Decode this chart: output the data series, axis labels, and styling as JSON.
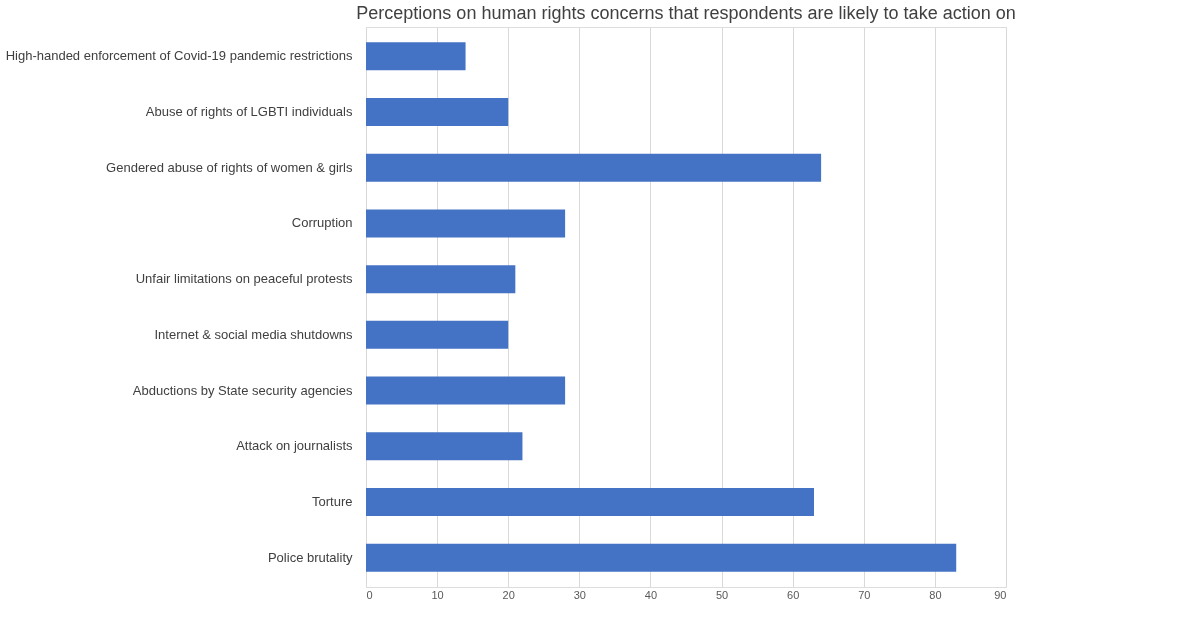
{
  "chart_data": {
    "type": "bar",
    "orientation": "horizontal",
    "title": "Perceptions on human rights concerns that respondents are likely to take action on",
    "categories": [
      "High-handed enforcement of Covid-19 pandemic restrictions",
      "Abuse of rights of LGBTI individuals",
      "Gendered abuse of rights of women & girls",
      "Corruption",
      "Unfair limitations on peaceful protests",
      "Internet & social media shutdowns",
      "Abductions by State security agencies",
      "Attack on journalists",
      "Torture",
      "Police brutality"
    ],
    "values": [
      14,
      20,
      64,
      28,
      21,
      20,
      28,
      22,
      63,
      83
    ],
    "color": "#4472c4",
    "xlim": [
      0,
      90
    ],
    "xticks": [
      0,
      10,
      20,
      30,
      40,
      50,
      60,
      70,
      80,
      90
    ],
    "grid": "x"
  }
}
